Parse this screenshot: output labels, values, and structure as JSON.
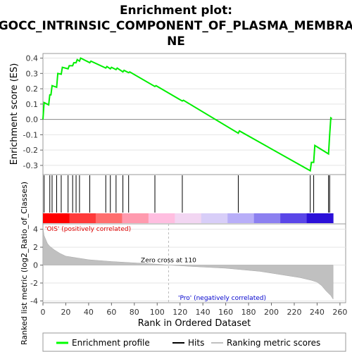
{
  "chart_data": {
    "type": "line",
    "title_lines": [
      "Enrichment plot:",
      "GOCC_INTRINSIC_COMPONENT_OF_PLASMA_MEMBRA",
      "NE"
    ],
    "es_panel": {
      "ylabel": "Enrichment score (ES)",
      "ylim": [
        -0.36,
        0.43
      ],
      "yticks": [
        -0.3,
        -0.2,
        -0.1,
        0.0,
        0.1,
        0.2,
        0.3,
        0.4
      ],
      "ytick_labels": [
        "-0.3",
        "-0.2",
        "-0.1",
        "0.0",
        "0.1",
        "0.2",
        "0.3",
        "0.4"
      ],
      "series": [
        {
          "name": "Enrichment profile",
          "color": "#00ff00",
          "x": [
            0,
            1,
            5,
            6,
            7,
            8,
            12,
            13,
            16,
            17,
            22,
            23,
            26,
            27,
            29,
            30,
            32,
            33,
            41,
            42,
            55,
            56,
            59,
            60,
            64,
            65,
            70,
            71,
            75,
            76,
            98,
            99,
            122,
            123,
            171,
            172,
            234,
            235,
            237,
            238,
            250,
            251,
            252,
            253
          ],
          "y": [
            0.0,
            0.11,
            0.095,
            0.16,
            0.16,
            0.22,
            0.21,
            0.3,
            0.295,
            0.34,
            0.33,
            0.35,
            0.35,
            0.37,
            0.37,
            0.39,
            0.38,
            0.4,
            0.37,
            0.38,
            0.335,
            0.345,
            0.33,
            0.34,
            0.325,
            0.335,
            0.31,
            0.32,
            0.305,
            0.31,
            0.215,
            0.22,
            0.12,
            0.125,
            -0.09,
            -0.075,
            -0.335,
            -0.28,
            -0.28,
            -0.17,
            -0.225,
            -0.1,
            0.01,
            0.005
          ]
        }
      ]
    },
    "hits_panel": {
      "hit_ranks": [
        1,
        6,
        8,
        12,
        16,
        22,
        26,
        29,
        32,
        41,
        55,
        59,
        64,
        70,
        75,
        98,
        122,
        171,
        234,
        237,
        250,
        251
      ],
      "rank_bar_colors": [
        "#ff0000",
        "#ff3a3a",
        "#ff6e6e",
        "#ff9aae",
        "#ffbee0",
        "#f2d6f2",
        "#d8cef8",
        "#b8aef8",
        "#8c80f0",
        "#5a46e8",
        "#2b10d8"
      ]
    },
    "metric_panel": {
      "ylabel": "Ranked list metric (log2_Ratio_of_Classes)",
      "ylim": [
        -4.2,
        4.6
      ],
      "yticks": [
        -4,
        -2,
        0,
        2,
        4
      ],
      "ytick_labels": [
        "-4",
        "-2",
        "0",
        "2",
        "4"
      ],
      "zero_cross_rank": 110,
      "annotations": {
        "positive": "'OIS' (positively correlated)",
        "negative": "'Pro' (negatively correlated)",
        "zero_cross": "Zero cross at 110"
      },
      "profile_x": [
        0,
        1,
        2,
        4,
        6,
        10,
        15,
        20,
        30,
        40,
        60,
        80,
        100,
        110,
        130,
        160,
        190,
        210,
        225,
        235,
        240,
        244,
        248,
        252,
        254
      ],
      "profile_y": [
        4.2,
        3.3,
        3.0,
        2.4,
        2.1,
        1.7,
        1.3,
        1.0,
        0.8,
        0.6,
        0.4,
        0.25,
        0.1,
        0.0,
        -0.15,
        -0.35,
        -0.7,
        -1.1,
        -1.4,
        -1.7,
        -1.9,
        -2.3,
        -2.9,
        -3.4,
        -3.8
      ]
    },
    "xaxis": {
      "label": "Rank in Ordered Dataset",
      "xlim": [
        0,
        265
      ],
      "ticks": [
        0,
        20,
        40,
        60,
        80,
        100,
        120,
        140,
        160,
        180,
        200,
        220,
        240,
        260
      ],
      "tick_labels": [
        "0",
        "20",
        "40",
        "60",
        "80",
        "100",
        "120",
        "140",
        "160",
        "180",
        "200",
        "220",
        "240",
        "260"
      ]
    },
    "legend": {
      "position": "bottom",
      "items": [
        {
          "label": "Enrichment profile",
          "color": "#00ff00",
          "kind": "line"
        },
        {
          "label": "Hits",
          "color": "#000000",
          "kind": "line"
        },
        {
          "label": "Ranking metric scores",
          "color": "#c0c0c0",
          "kind": "line"
        }
      ]
    }
  }
}
